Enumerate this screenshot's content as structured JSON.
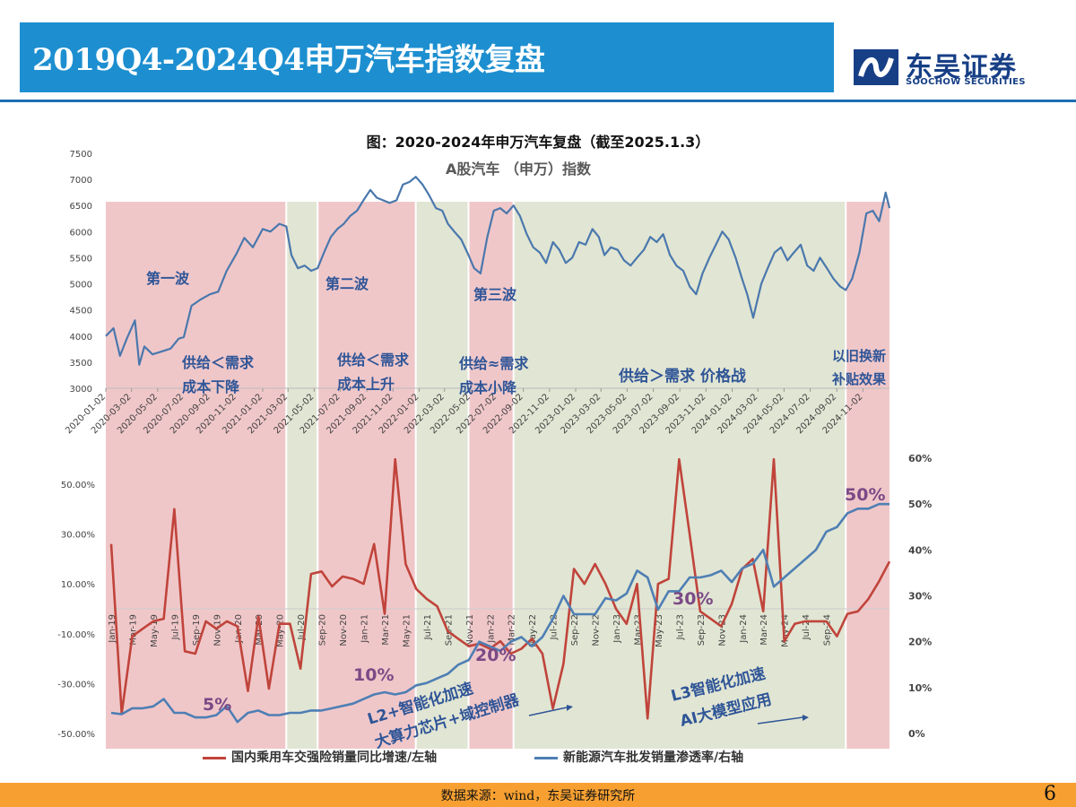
{
  "header": {
    "title": "2019Q4-2024Q4申万汽车指数复盘"
  },
  "logo": {
    "name_cn": "东吴证券",
    "name_en": "SOOCHOW SECURITIES"
  },
  "figure": {
    "caption": "图：2020-2024年申万汽车复盘（截至2025.1.3）"
  },
  "colors": {
    "header_bg": "#1d8fd0",
    "pink_shade": "#efc4c6",
    "green_shade": "#dfe4d1",
    "index_line": "#4a78ad",
    "sales_line": "#c0443b",
    "nev_line": "#4e7fb4",
    "annotation_text": "#2f5597",
    "percent_label": "#7b4a86",
    "footer_bg": "#f7a031"
  },
  "legend": [
    {
      "label": "国内乘用车交强险销量同比增速/左轴",
      "color": "#c0443b"
    },
    {
      "label": "新能源汽车批发销量渗透率/右轴",
      "color": "#4e7fb4"
    }
  ],
  "chart_data": [
    {
      "type": "line",
      "title": "A股汽车 （申万）指数",
      "x_ticks": [
        "2020-01-02",
        "2020-03-02",
        "2020-05-02",
        "2020-07-02",
        "2020-09-02",
        "2020-11-02",
        "2021-01-02",
        "2021-03-02",
        "2021-05-02",
        "2021-07-02",
        "2021-09-02",
        "2021-11-02",
        "2022-01-02",
        "2022-03-02",
        "2022-05-02",
        "2022-07-02",
        "2022-09-02",
        "2022-11-02",
        "2023-01-02",
        "2023-03-02",
        "2023-05-02",
        "2023-07-02",
        "2023-09-02",
        "2023-11-02",
        "2024-01-02",
        "2024-03-02",
        "2024-05-02",
        "2024-07-02",
        "2024-09-02",
        "2024-11-02"
      ],
      "y_ticks": [
        "3000",
        "3500",
        "4000",
        "4500",
        "5000",
        "5500",
        "6000",
        "6500",
        "7000",
        "7500"
      ],
      "ylim": [
        3000,
        7500
      ],
      "x_range": [
        "2020-01-02",
        "2025-01-03"
      ],
      "series": [
        {
          "x": [
            "2020-01-02",
            "2020-01-20",
            "2020-02-04",
            "2020-02-20",
            "2020-03-10",
            "2020-03-20",
            "2020-04-01",
            "2020-04-20",
            "2020-05-10",
            "2020-06-01",
            "2020-06-20",
            "2020-07-02",
            "2020-07-20",
            "2020-08-10",
            "2020-09-01",
            "2020-09-20",
            "2020-10-10",
            "2020-11-02",
            "2020-11-20",
            "2020-12-10",
            "2021-01-02",
            "2021-01-20",
            "2021-02-10",
            "2021-02-26",
            "2021-03-10",
            "2021-03-25",
            "2021-04-10",
            "2021-04-25",
            "2021-05-10",
            "2021-05-25",
            "2021-06-10",
            "2021-06-25",
            "2021-07-10",
            "2021-07-25",
            "2021-08-10",
            "2021-08-25",
            "2021-09-10",
            "2021-09-25",
            "2021-10-10",
            "2021-10-25",
            "2021-11-10",
            "2021-11-25",
            "2021-12-10",
            "2021-12-25",
            "2022-01-10",
            "2022-01-25",
            "2022-02-10",
            "2022-02-25",
            "2022-03-10",
            "2022-03-25",
            "2022-04-10",
            "2022-04-27",
            "2022-05-10",
            "2022-05-25",
            "2022-06-10",
            "2022-06-25",
            "2022-07-10",
            "2022-07-25",
            "2022-08-10",
            "2022-08-25",
            "2022-09-10",
            "2022-09-25",
            "2022-10-10",
            "2022-10-25",
            "2022-11-10",
            "2022-11-25",
            "2022-12-10",
            "2022-12-25",
            "2023-01-10",
            "2023-01-25",
            "2023-02-10",
            "2023-02-25",
            "2023-03-10",
            "2023-03-25",
            "2023-04-10",
            "2023-04-25",
            "2023-05-10",
            "2023-05-25",
            "2023-06-10",
            "2023-06-25",
            "2023-07-10",
            "2023-07-25",
            "2023-08-10",
            "2023-08-25",
            "2023-09-10",
            "2023-09-25",
            "2023-10-10",
            "2023-10-25",
            "2023-11-10",
            "2023-11-25",
            "2023-12-10",
            "2023-12-25",
            "2024-01-10",
            "2024-01-25",
            "2024-02-06",
            "2024-02-20",
            "2024-03-10",
            "2024-03-25",
            "2024-04-10",
            "2024-04-25",
            "2024-05-10",
            "2024-05-25",
            "2024-06-10",
            "2024-06-25",
            "2024-07-10",
            "2024-07-25",
            "2024-08-10",
            "2024-08-25",
            "2024-09-10",
            "2024-09-23",
            "2024-10-08",
            "2024-10-25",
            "2024-11-10",
            "2024-11-25",
            "2024-12-10",
            "2024-12-25",
            "2025-01-03"
          ],
          "values": [
            4000,
            4150,
            3620,
            3950,
            4300,
            3450,
            3800,
            3650,
            3700,
            3760,
            3950,
            3980,
            4580,
            4700,
            4800,
            4850,
            5250,
            5580,
            5880,
            5700,
            6050,
            6000,
            6150,
            6100,
            5550,
            5300,
            5350,
            5250,
            5300,
            5600,
            5900,
            6050,
            6150,
            6300,
            6400,
            6600,
            6800,
            6650,
            6600,
            6550,
            6600,
            6900,
            6950,
            7050,
            6900,
            6700,
            6450,
            6400,
            6150,
            6000,
            5850,
            5550,
            5300,
            5200,
            5900,
            6400,
            6450,
            6350,
            6500,
            6300,
            5950,
            5700,
            5600,
            5400,
            5800,
            5650,
            5400,
            5500,
            5800,
            5750,
            6050,
            5900,
            5550,
            5700,
            5650,
            5450,
            5350,
            5500,
            5650,
            5900,
            5800,
            5950,
            5550,
            5350,
            5250,
            4950,
            4800,
            5200,
            5500,
            5750,
            6000,
            5850,
            5500,
            5100,
            4800,
            4350,
            5000,
            5300,
            5600,
            5700,
            5450,
            5600,
            5750,
            5350,
            5250,
            5500,
            5300,
            5100,
            4950,
            4880,
            5100,
            5600,
            6350,
            6400,
            6200,
            6750,
            6450
          ]
        }
      ],
      "regions": [
        {
          "start": "2020-01-02",
          "end": "2021-02-26",
          "shade": "pink",
          "wave": "第一波",
          "line1": "供给＜需求",
          "line2": "成本下降"
        },
        {
          "start": "2021-02-26",
          "end": "2021-05-10",
          "shade": "green"
        },
        {
          "start": "2021-05-10",
          "end": "2021-12-25",
          "shade": "pink",
          "wave": "第二波",
          "line1": "供给＜需求",
          "line2": "成本上升"
        },
        {
          "start": "2021-12-25",
          "end": "2022-04-27",
          "shade": "green"
        },
        {
          "start": "2022-04-27",
          "end": "2022-08-10",
          "shade": "pink",
          "wave": "第三波",
          "line1": "供给≈需求",
          "line2": "成本小降"
        },
        {
          "start": "2022-08-10",
          "end": "2024-09-23",
          "shade": "green",
          "line1": "供给＞需求   价格战"
        },
        {
          "start": "2024-09-23",
          "end": "2025-01-03",
          "shade": "pink",
          "line1": "以旧换新",
          "line2": "补贴效果"
        }
      ]
    },
    {
      "type": "line",
      "x_ticks": [
        "Jan-19",
        "Mar-19",
        "May-19",
        "Jul-19",
        "Sep-19",
        "Nov-19",
        "Jan-20",
        "Mar-20",
        "May-20",
        "Jul-20",
        "Sep-20",
        "Nov-20",
        "Jan-21",
        "Mar-21",
        "May-21",
        "Jul-21",
        "Sep-21",
        "Nov-21",
        "Jan-22",
        "Mar-22",
        "May-22",
        "Jul-22",
        "Sep-22",
        "Nov-22",
        "Jan-23",
        "Mar-23",
        "May-23",
        "Jul-23",
        "Sep-23",
        "Nov-23",
        "Jan-24",
        "Mar-24",
        "May-24",
        "Jul-24",
        "Sep-24"
      ],
      "y_left_ticks": [
        "-50.00%",
        "-30.00%",
        "-10.00%",
        "10.00%",
        "30.00%",
        "50.00%"
      ],
      "y_left_range": [
        -50,
        60
      ],
      "y_right_ticks": [
        "0%",
        "10%",
        "20%",
        "30%",
        "40%",
        "50%",
        "60%"
      ],
      "y_right_range": [
        0,
        60
      ],
      "series": [
        {
          "name": "国内乘用车交强险销量同比增速/左轴",
          "axis": "left",
          "values": [
            26,
            -42,
            -11,
            -8,
            -5,
            -4,
            40,
            -17,
            -18,
            -5,
            -8,
            -5,
            -7,
            -33,
            -3,
            -32,
            -6,
            -6,
            -24,
            14,
            15,
            9,
            13,
            12,
            10,
            26,
            -2,
            60,
            18,
            8,
            4,
            1,
            -9,
            -12,
            -15,
            -14,
            -16,
            -13,
            -18,
            -16,
            -12,
            -18,
            -40,
            -22,
            16,
            10,
            18,
            10,
            0,
            -6,
            10,
            -44,
            10,
            12,
            60,
            30,
            -1,
            -4,
            -7,
            2,
            16,
            20,
            -1,
            60,
            -13,
            -6,
            -5,
            -5,
            -5,
            -11,
            -2,
            -1,
            4,
            11,
            19
          ],
          "x_start": "Jan-19",
          "step": "month"
        },
        {
          "name": "新能源汽车批发销量渗透率/右轴",
          "axis": "right",
          "values": [
            4.5,
            4.2,
            5.5,
            5.5,
            5.9,
            7.5,
            4.5,
            4.5,
            3.5,
            3.5,
            4,
            6,
            2.5,
            4.5,
            5,
            4,
            4,
            4.5,
            4.5,
            5,
            5,
            5.5,
            6,
            6.5,
            7.5,
            8.5,
            9,
            8.5,
            9,
            10.5,
            11,
            12,
            13,
            15,
            16,
            20,
            19,
            18,
            20,
            21,
            19,
            21,
            25,
            30,
            26,
            26,
            26,
            29.5,
            29,
            30.5,
            35.5,
            34,
            27,
            31,
            31,
            34,
            34,
            34.5,
            35.5,
            33,
            36,
            37,
            40,
            32,
            34,
            36,
            38,
            40,
            44,
            45,
            48,
            49,
            49,
            50,
            50
          ],
          "x_start": "Jan-19",
          "step": "month"
        }
      ],
      "annotations": {
        "penetration_labels": [
          "5%",
          "10%",
          "20%",
          "30%",
          "50%"
        ],
        "stage1_line1": "L2+智能化加速",
        "stage1_line2": "大算力芯片+域控制器",
        "stage2_line1": "L3智能化加速",
        "stage2_line2": "AI大模型应用"
      }
    }
  ],
  "footer": {
    "source": "数据来源：wind，东吴证券研究所",
    "page_number": "6"
  }
}
